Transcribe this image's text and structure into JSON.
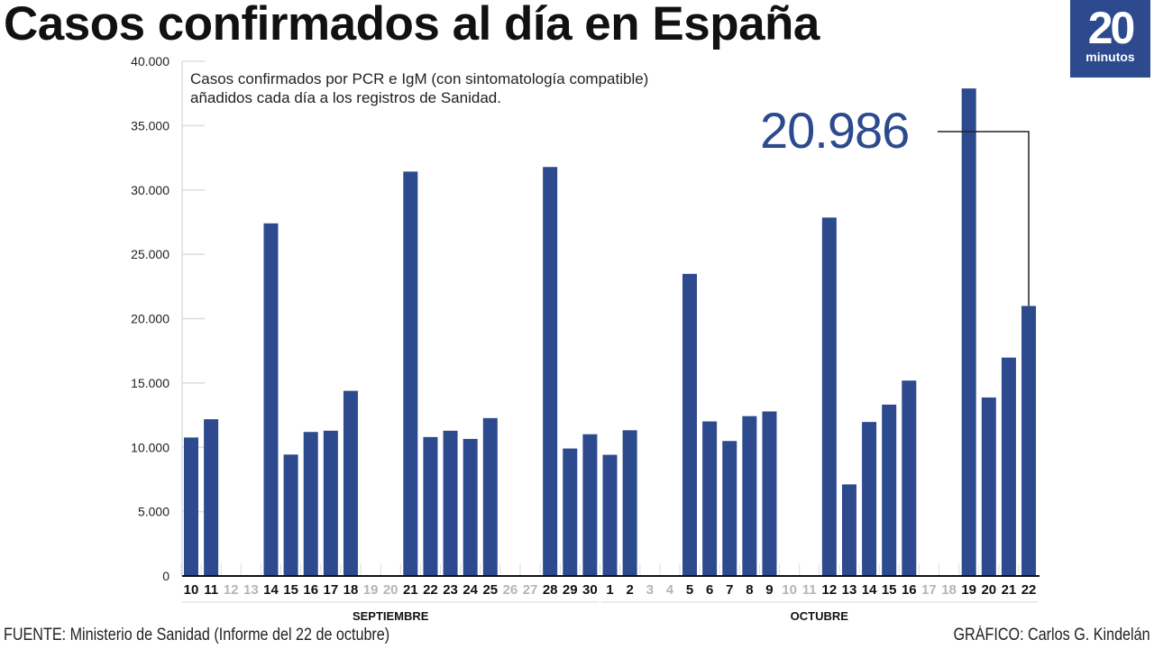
{
  "title": "Casos confirmados al día en España",
  "logo": {
    "number": "20",
    "word": "minutos"
  },
  "subtitle_lines": [
    "Casos confirmados por PCR e IgM (con sintomatología compatible)",
    "añadidos cada día a los registros de Sanidad."
  ],
  "source": "FUENTE: Ministerio de Sanidad (Informe del 22 de octubre)",
  "credit": "GRÁFICO: Carlos G. Kindelán",
  "colors": {
    "bar": "#2d4a8e",
    "weekend_label": "#b5b5b5",
    "label": "#111111"
  },
  "chart_data": {
    "type": "bar",
    "title": "Casos confirmados al día en España",
    "ylim": [
      0,
      40000
    ],
    "yticks": [
      "0",
      "5.000",
      "10.000",
      "15.000",
      "20.000",
      "25.000",
      "30.000",
      "35.000",
      "40.000"
    ],
    "ytick_values": [
      0,
      5000,
      10000,
      15000,
      20000,
      25000,
      30000,
      35000,
      40000
    ],
    "grid": false,
    "months": [
      {
        "label": "SEPTIEMBRE",
        "from": 0,
        "to": 20
      },
      {
        "label": "OCTUBRE",
        "from": 21,
        "to": 42
      }
    ],
    "categories": [
      "10",
      "11",
      "12",
      "13",
      "14",
      "15",
      "16",
      "17",
      "18",
      "19",
      "20",
      "21",
      "22",
      "23",
      "24",
      "25",
      "26",
      "27",
      "28",
      "29",
      "30",
      "1",
      "2",
      "3",
      "4",
      "5",
      "6",
      "7",
      "8",
      "9",
      "10",
      "11",
      "12",
      "13",
      "14",
      "15",
      "16",
      "17",
      "18",
      "19",
      "20",
      "21",
      "22"
    ],
    "values": [
      10764,
      12183,
      null,
      null,
      27404,
      9437,
      11193,
      11291,
      14389,
      null,
      null,
      31428,
      10799,
      11289,
      10653,
      12272,
      null,
      null,
      31785,
      9906,
      11016,
      9419,
      11325,
      null,
      null,
      23480,
      12012,
      10491,
      12423,
      12788,
      null,
      null,
      27856,
      7118,
      11970,
      13318,
      15186,
      null,
      null,
      37889,
      13873,
      16973,
      20986
    ],
    "annotation": {
      "label": "20.986",
      "category_index": 42
    }
  }
}
